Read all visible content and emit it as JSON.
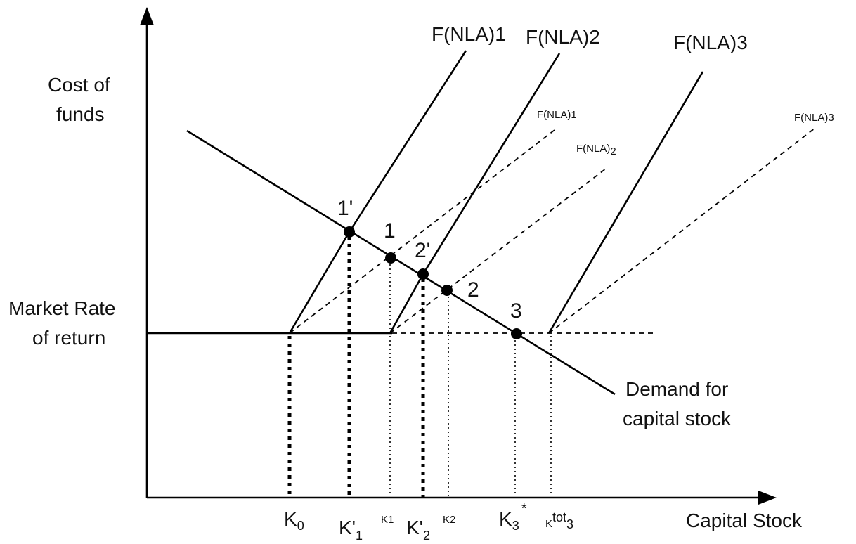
{
  "axes": {
    "y_label_line1": "Cost of",
    "y_label_line2": "funds",
    "x_label": "Capital Stock",
    "market_rate_line1": "Market Rate",
    "market_rate_line2": "of return"
  },
  "curves": {
    "solid_supply_1": {
      "base": "F(NLA)",
      "sub": "1"
    },
    "solid_supply_2": {
      "base": "F(NLA)",
      "sub": "2"
    },
    "solid_supply_3": {
      "base": "F(NLA)",
      "sub": "3"
    },
    "dashed_supply_1": {
      "base": "F(NLA)",
      "sub": "1"
    },
    "dashed_supply_2": {
      "base": "F(NLA)",
      "sub": "2"
    },
    "dashed_supply_3": {
      "base": "F(NLA)",
      "sub": "3"
    },
    "demand_line1": "Demand for",
    "demand_line2": "capital stock"
  },
  "points": {
    "p1prime": "1'",
    "p1": "1",
    "p2prime": "2'",
    "p2": "2",
    "p3": "3"
  },
  "ticks": {
    "k0": {
      "base": "K",
      "sub": "0"
    },
    "k1prime": {
      "base": "K'",
      "sub": "1"
    },
    "k1": {
      "base": "K",
      "sub": "1"
    },
    "k2prime": {
      "base": "K'",
      "sub": "2"
    },
    "k2": {
      "base": "K",
      "sub": "2"
    },
    "k3star": {
      "base": "K",
      "sub": "3",
      "sup": "*"
    },
    "ktot3": {
      "base": "K",
      "sup": "tot",
      "sub": "3"
    }
  }
}
